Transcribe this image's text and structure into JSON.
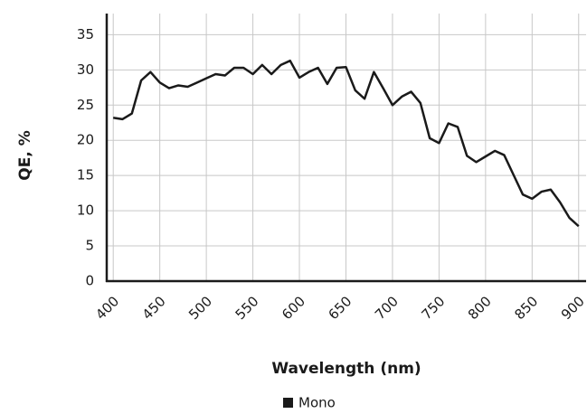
{
  "chart_data": {
    "type": "line",
    "x_label": "Wavelength (nm)",
    "y_label": "QE, %",
    "x": [
      400,
      410,
      420,
      430,
      440,
      450,
      460,
      470,
      480,
      490,
      500,
      510,
      520,
      530,
      540,
      550,
      560,
      570,
      580,
      590,
      600,
      610,
      620,
      630,
      640,
      650,
      660,
      670,
      680,
      690,
      700,
      710,
      720,
      730,
      740,
      750,
      760,
      770,
      780,
      790,
      800,
      810,
      820,
      830,
      840,
      850,
      860,
      870,
      880,
      890,
      900
    ],
    "series": [
      {
        "name": "Mono",
        "color": "#1a1a1a",
        "values": [
          23.2,
          23.0,
          23.8,
          28.5,
          29.7,
          28.2,
          27.4,
          27.8,
          27.6,
          28.2,
          28.8,
          29.4,
          29.2,
          30.3,
          30.3,
          29.4,
          30.7,
          29.4,
          30.7,
          31.3,
          28.9,
          29.7,
          30.3,
          28.0,
          30.3,
          30.4,
          27.1,
          25.9,
          29.7,
          27.4,
          25.0,
          26.2,
          26.9,
          25.3,
          20.3,
          19.6,
          22.4,
          21.9,
          17.8,
          16.9,
          17.7,
          18.5,
          17.9,
          15.1,
          12.3,
          11.7,
          12.7,
          13.0,
          11.2,
          9.0,
          7.8
        ]
      }
    ],
    "xlim": [
      393,
      908
    ],
    "xticks": [
      400,
      450,
      500,
      550,
      600,
      650,
      700,
      750,
      800,
      850,
      900
    ],
    "ylim": [
      0,
      38
    ],
    "yticks": [
      0,
      5,
      10,
      15,
      20,
      25,
      30,
      35
    ],
    "grid": true,
    "legend": "bottom"
  }
}
